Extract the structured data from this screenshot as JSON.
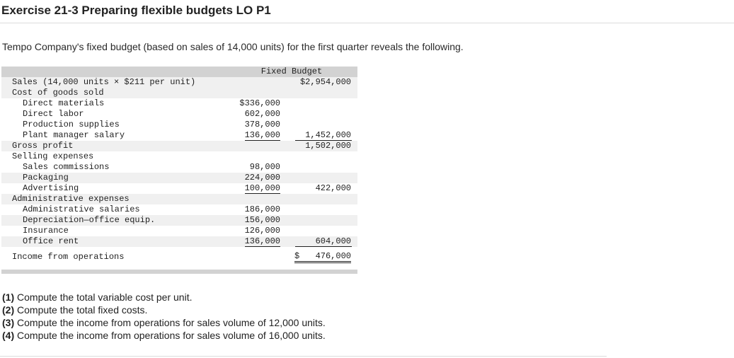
{
  "title": "Exercise 21-3 Preparing flexible budgets LO P1",
  "intro": "Tempo Company's fixed budget (based on sales of 14,000 units) for the first quarter reveals the following.",
  "budget": {
    "column_header": "Fixed Budget",
    "sales": {
      "label": "Sales (14,000 units × $211 per unit)",
      "total": "$2,954,000"
    },
    "cogs": {
      "label": "Cost of goods sold",
      "items": [
        {
          "label": "Direct materials",
          "amount": "$336,000"
        },
        {
          "label": "Direct labor",
          "amount": "602,000"
        },
        {
          "label": "Production supplies",
          "amount": "378,000"
        },
        {
          "label": "Plant manager salary",
          "amount": "136,000"
        }
      ],
      "total": "1,452,000"
    },
    "gross_profit": {
      "label": "Gross profit",
      "total": "1,502,000"
    },
    "selling": {
      "label": "Selling expenses",
      "items": [
        {
          "label": "Sales commissions",
          "amount": "98,000"
        },
        {
          "label": "Packaging",
          "amount": "224,000"
        },
        {
          "label": "Advertising",
          "amount": "100,000"
        }
      ],
      "total": "422,000"
    },
    "admin": {
      "label": "Administrative expenses",
      "items": [
        {
          "label": "Administrative salaries",
          "amount": "186,000"
        },
        {
          "label": "Depreciation—office equip.",
          "amount": "156,000"
        },
        {
          "label": "Insurance",
          "amount": "126,000"
        },
        {
          "label": "Office rent",
          "amount": "136,000"
        }
      ],
      "total": "604,000"
    },
    "income": {
      "label": "Income from operations",
      "dollar": "$",
      "total": "476,000"
    }
  },
  "questions": [
    {
      "num": "(1)",
      "text": "Compute the total variable cost per unit."
    },
    {
      "num": "(2)",
      "text": "Compute the total fixed costs."
    },
    {
      "num": "(3)",
      "text": "Compute the income from operations for sales volume of 12,000 units."
    },
    {
      "num": "(4)",
      "text": "Compute the income from operations for sales volume of 16,000 units."
    }
  ]
}
